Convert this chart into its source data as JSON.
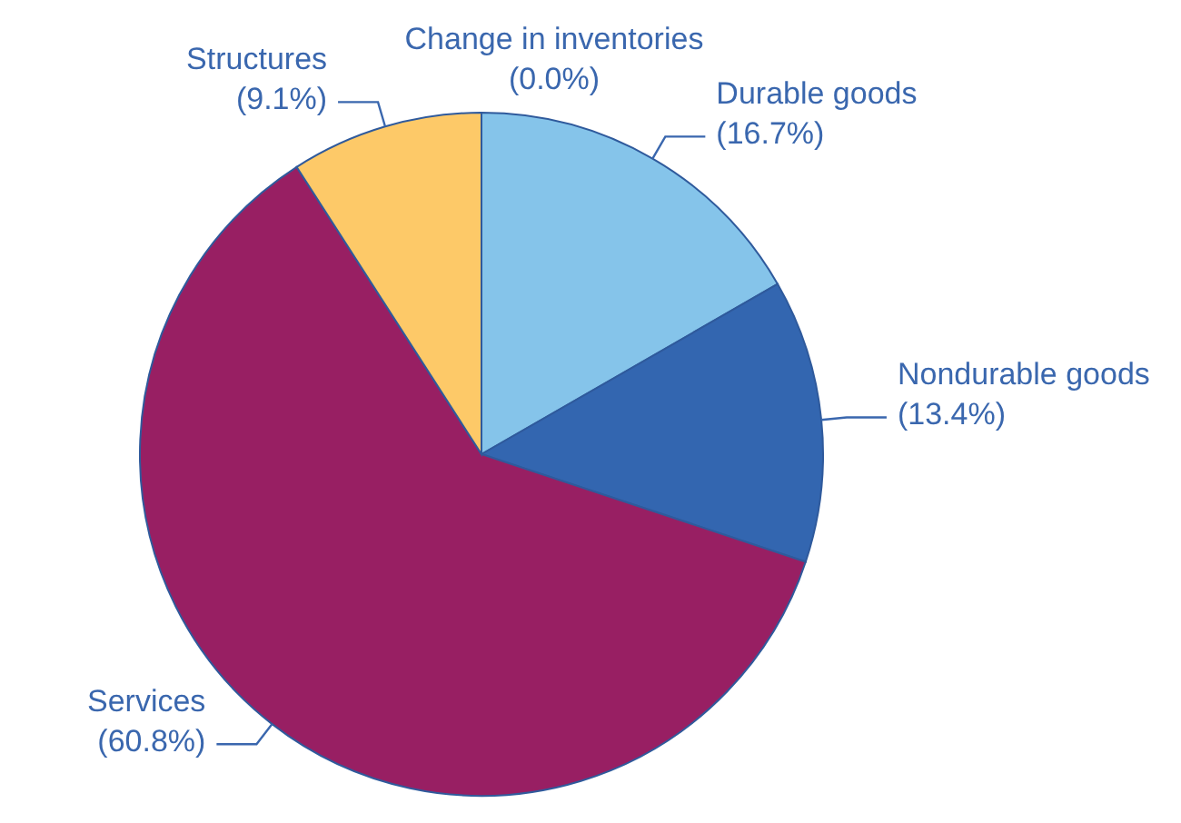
{
  "chart_data": {
    "type": "pie",
    "categories": [
      "Change in inventories",
      "Durable goods",
      "Nondurable goods",
      "Services",
      "Structures"
    ],
    "values": [
      0.0,
      16.7,
      13.4,
      60.8,
      9.1
    ],
    "value_labels": [
      "(0.0%)",
      "(16.7%)",
      "(13.4%)",
      "(60.8%)",
      "(9.1%)"
    ],
    "colors": [
      "#3366b0",
      "#85c4ea",
      "#3366b0",
      "#981f63",
      "#fdc968"
    ]
  }
}
